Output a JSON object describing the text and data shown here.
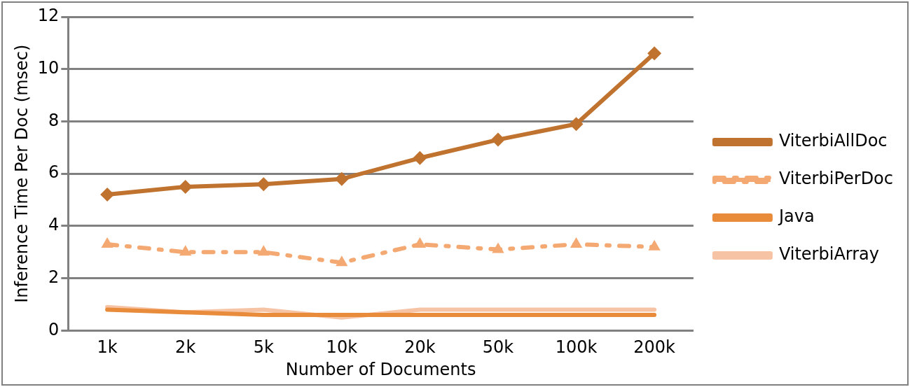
{
  "chart_data": {
    "type": "line",
    "xlabel": "Number of Documents",
    "ylabel": "Inference Time Per Doc (msec)",
    "categories": [
      "1k",
      "2k",
      "5k",
      "10k",
      "20k",
      "50k",
      "100k",
      "200k"
    ],
    "series": [
      {
        "name": "ViterbiAllDoc",
        "color": "#c0722f",
        "marker": "diamond",
        "line_style": "solid",
        "values": [
          5.2,
          5.5,
          5.6,
          5.8,
          6.6,
          7.3,
          7.9,
          10.6
        ]
      },
      {
        "name": "ViterbiPerDoc",
        "color": "#f4a872",
        "marker": "triangle",
        "line_style": "dashed",
        "values": [
          3.3,
          3.0,
          3.0,
          2.6,
          3.3,
          3.1,
          3.3,
          3.2
        ]
      },
      {
        "name": "Java",
        "color": "#e88c3c",
        "marker": "none",
        "line_style": "solid",
        "values": [
          0.8,
          0.7,
          0.6,
          0.6,
          0.6,
          0.6,
          0.6,
          0.6
        ]
      },
      {
        "name": "ViterbiArray",
        "color": "#f6c3a4",
        "marker": "none",
        "line_style": "solid",
        "values": [
          0.9,
          0.7,
          0.8,
          0.5,
          0.8,
          0.8,
          0.8,
          0.8
        ]
      }
    ],
    "ylim": [
      0,
      12
    ],
    "yticks": [
      0,
      2,
      4,
      6,
      8,
      10,
      12
    ],
    "grid": "y",
    "legend": "right"
  }
}
